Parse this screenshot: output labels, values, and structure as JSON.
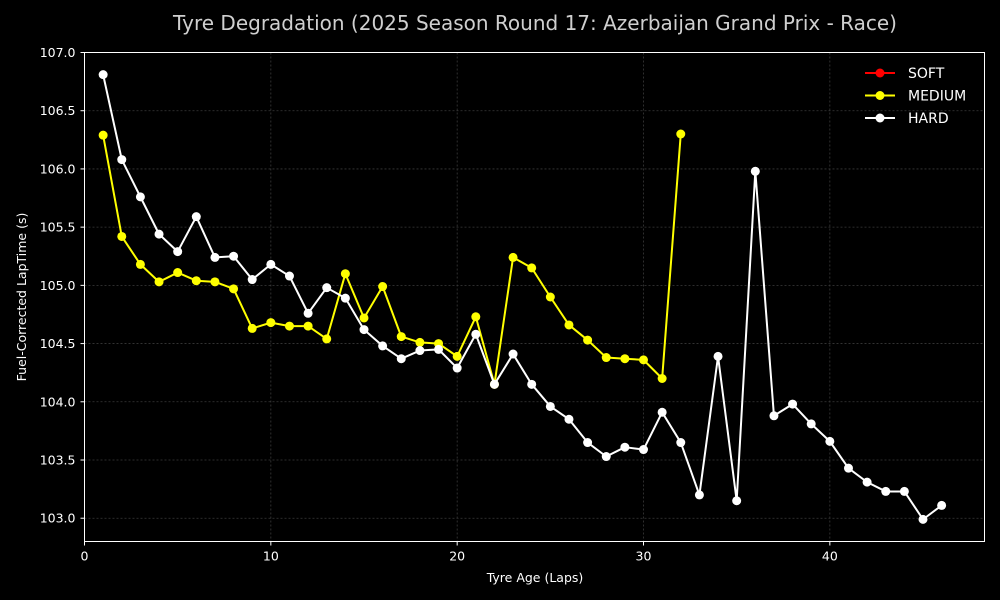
{
  "chart_data": {
    "type": "line",
    "title": "Tyre Degradation (2025 Season Round 17: Azerbaijan Grand Prix - Race)",
    "xlabel": "Tyre Age (Laps)",
    "ylabel": "Fuel-Corrected LapTime (s)",
    "xlim": [
      0,
      48.3
    ],
    "ylim": [
      102.8,
      107.0
    ],
    "xticks": [
      0,
      10,
      20,
      30,
      40
    ],
    "yticks": [
      103.0,
      103.5,
      104.0,
      104.5,
      105.0,
      105.5,
      106.0,
      106.5,
      107.0
    ],
    "xtick_labels": [
      "0",
      "10",
      "20",
      "30",
      "40"
    ],
    "ytick_labels": [
      "103.0",
      "103.5",
      "104.0",
      "104.5",
      "105.0",
      "105.5",
      "106.0",
      "106.5",
      "107.0"
    ],
    "grid": true,
    "legend_position": "top-right",
    "background": "#000000",
    "series": [
      {
        "name": "SOFT",
        "color": "#ff0000",
        "x": [],
        "y": []
      },
      {
        "name": "MEDIUM",
        "color": "#ffff00",
        "x": [
          1,
          2,
          3,
          4,
          5,
          6,
          7,
          8,
          9,
          10,
          11,
          12,
          13,
          14,
          15,
          16,
          17,
          18,
          19,
          20,
          21,
          22,
          23,
          24,
          25,
          26,
          27,
          28,
          29,
          30,
          31,
          32
        ],
        "y": [
          106.29,
          105.42,
          105.18,
          105.03,
          105.11,
          105.04,
          105.03,
          104.97,
          104.63,
          104.68,
          104.65,
          104.65,
          104.54,
          105.1,
          104.72,
          104.99,
          104.56,
          104.51,
          104.5,
          104.39,
          104.73,
          104.15,
          105.24,
          105.15,
          104.9,
          104.66,
          104.53,
          104.38,
          104.37,
          104.36,
          104.2,
          106.3
        ]
      },
      {
        "name": "HARD",
        "color": "#ffffff",
        "x": [
          1,
          2,
          3,
          4,
          5,
          6,
          7,
          8,
          9,
          10,
          11,
          12,
          13,
          14,
          15,
          16,
          17,
          18,
          19,
          20,
          21,
          22,
          23,
          24,
          25,
          26,
          27,
          28,
          29,
          30,
          31,
          32,
          33,
          34,
          35,
          36,
          37,
          38,
          39,
          40,
          41,
          42,
          43,
          44,
          45,
          46
        ],
        "y": [
          106.81,
          106.08,
          105.76,
          105.44,
          105.29,
          105.59,
          105.24,
          105.25,
          105.05,
          105.18,
          105.08,
          104.76,
          104.98,
          104.89,
          104.62,
          104.48,
          104.37,
          104.44,
          104.45,
          104.29,
          104.58,
          104.15,
          104.41,
          104.15,
          103.96,
          103.85,
          103.65,
          103.53,
          103.61,
          103.59,
          103.91,
          103.65,
          103.2,
          104.39,
          103.15,
          105.98,
          103.88,
          103.98,
          103.81,
          103.66,
          103.43,
          103.31,
          103.23,
          103.23,
          102.99,
          103.11
        ]
      }
    ]
  }
}
